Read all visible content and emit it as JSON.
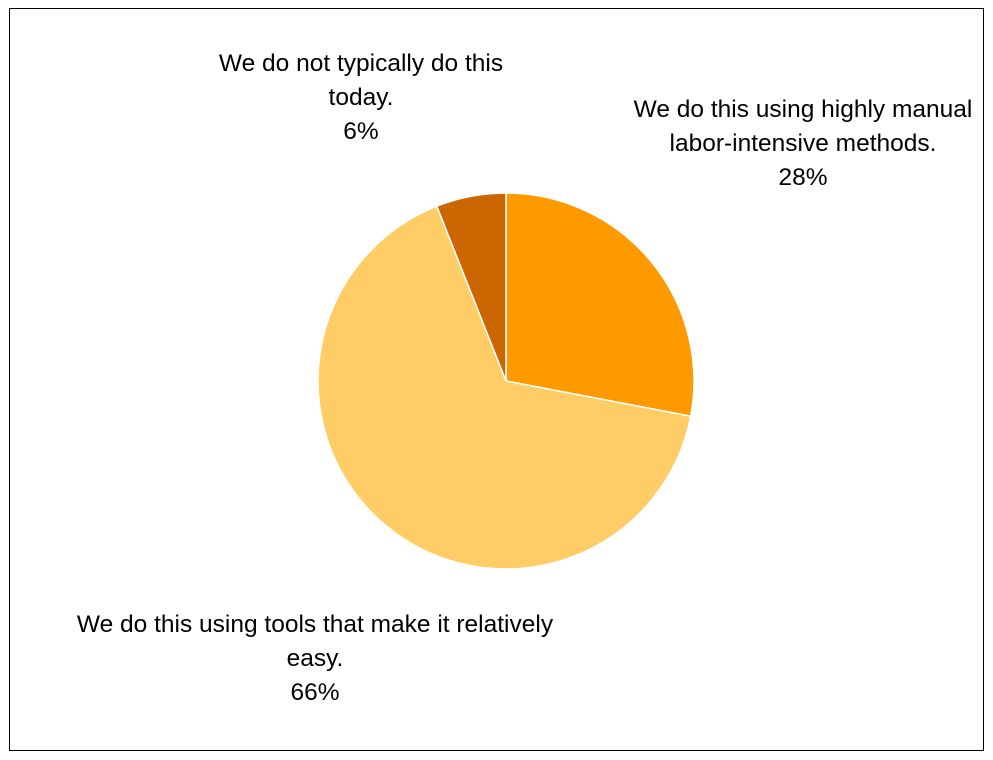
{
  "chart_data": {
    "type": "pie",
    "title": "",
    "slices": [
      {
        "label": "We do this using highly manual labor-intensive methods.",
        "value": 28,
        "value_label": "28%",
        "color": "#FF9900"
      },
      {
        "label": "We do this using tools that make it relatively easy.",
        "value": 66,
        "value_label": "66%",
        "color": "#FFCC66"
      },
      {
        "label": "We do not typically do this today.",
        "value": 6,
        "value_label": "6%",
        "color": "#CC6600"
      }
    ],
    "start_direction": "top",
    "winding": "clockwise",
    "slice_border_color": "#FFFFFF",
    "legend": "none"
  }
}
